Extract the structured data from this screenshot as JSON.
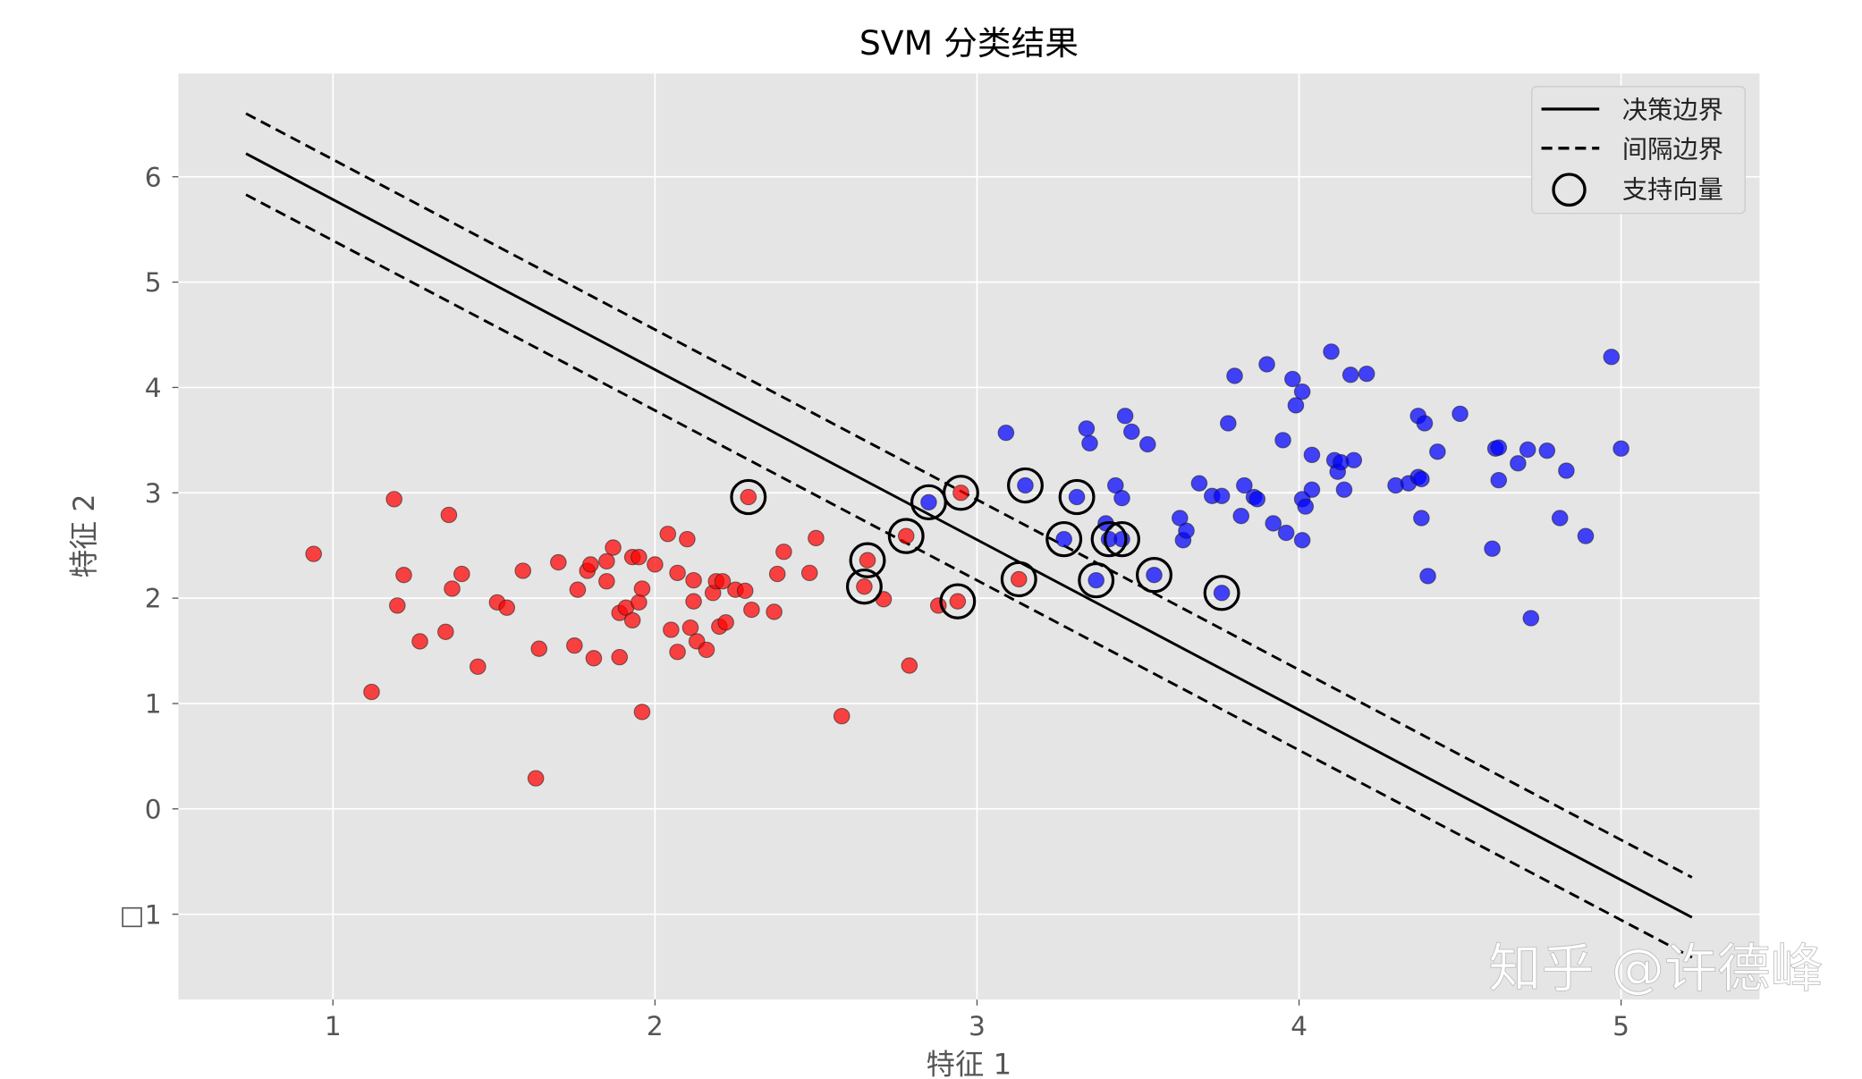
{
  "chart_data": {
    "type": "scatter",
    "title": "SVM 分类结果",
    "xlabel": "特征 1",
    "ylabel": "特征 2",
    "xlim": [
      0.52,
      5.43
    ],
    "ylim": [
      -1.81,
      6.98
    ],
    "grid": true,
    "background": "#e5e5e5",
    "xticks": [
      {
        "v": 1,
        "label": "1"
      },
      {
        "v": 2,
        "label": "2"
      },
      {
        "v": 3,
        "label": "3"
      },
      {
        "v": 4,
        "label": "4"
      },
      {
        "v": 5,
        "label": "5"
      }
    ],
    "yticks": [
      {
        "v": -1,
        "label": "□1"
      },
      {
        "v": 0,
        "label": "0"
      },
      {
        "v": 1,
        "label": "1"
      },
      {
        "v": 2,
        "label": "2"
      },
      {
        "v": 3,
        "label": "3"
      },
      {
        "v": 4,
        "label": "4"
      },
      {
        "v": 5,
        "label": "5"
      },
      {
        "v": 6,
        "label": "6"
      }
    ],
    "legend": {
      "position": "top-right",
      "entries": [
        {
          "label": "决策边界",
          "style": "solid"
        },
        {
          "label": "间隔边界",
          "style": "dashed"
        },
        {
          "label": "支持向量",
          "style": "circle"
        }
      ]
    },
    "lines": [
      {
        "role": "decision",
        "style": "solid",
        "points": [
          [
            0.73,
            6.22
          ],
          [
            5.22,
            -1.03
          ]
        ]
      },
      {
        "role": "margin",
        "style": "dashed",
        "points": [
          [
            0.73,
            6.6
          ],
          [
            5.22,
            -0.65
          ]
        ]
      },
      {
        "role": "margin",
        "style": "dashed",
        "points": [
          [
            0.73,
            5.83
          ],
          [
            5.22,
            -1.41
          ]
        ]
      }
    ],
    "series": [
      {
        "color": "#ff0000",
        "points": [
          [
            0.94,
            2.42
          ],
          [
            1.12,
            1.11
          ],
          [
            1.19,
            2.94
          ],
          [
            1.2,
            1.93
          ],
          [
            1.22,
            2.22
          ],
          [
            1.27,
            1.59
          ],
          [
            1.36,
            2.79
          ],
          [
            1.35,
            1.68
          ],
          [
            1.37,
            2.09
          ],
          [
            1.4,
            2.23
          ],
          [
            1.45,
            1.35
          ],
          [
            1.51,
            1.96
          ],
          [
            1.54,
            1.91
          ],
          [
            1.59,
            2.26
          ],
          [
            1.63,
            0.29
          ],
          [
            1.64,
            1.52
          ],
          [
            1.7,
            2.34
          ],
          [
            1.75,
            1.55
          ],
          [
            1.76,
            2.08
          ],
          [
            1.79,
            2.26
          ],
          [
            1.8,
            2.32
          ],
          [
            1.81,
            1.43
          ],
          [
            1.85,
            2.16
          ],
          [
            1.85,
            2.35
          ],
          [
            1.87,
            2.48
          ],
          [
            1.89,
            1.44
          ],
          [
            1.89,
            1.86
          ],
          [
            1.91,
            1.91
          ],
          [
            1.93,
            2.39
          ],
          [
            1.93,
            1.79
          ],
          [
            1.95,
            2.39
          ],
          [
            1.95,
            1.96
          ],
          [
            1.96,
            0.92
          ],
          [
            1.96,
            2.09
          ],
          [
            2.0,
            2.32
          ],
          [
            2.04,
            2.61
          ],
          [
            2.05,
            1.7
          ],
          [
            2.07,
            1.49
          ],
          [
            2.07,
            2.24
          ],
          [
            2.1,
            2.56
          ],
          [
            2.11,
            1.72
          ],
          [
            2.12,
            2.17
          ],
          [
            2.12,
            1.97
          ],
          [
            2.13,
            1.59
          ],
          [
            2.16,
            1.51
          ],
          [
            2.18,
            2.05
          ],
          [
            2.19,
            2.16
          ],
          [
            2.2,
            1.73
          ],
          [
            2.21,
            2.16
          ],
          [
            2.22,
            1.77
          ],
          [
            2.25,
            2.08
          ],
          [
            2.28,
            2.07
          ],
          [
            2.29,
            2.96
          ],
          [
            2.3,
            1.89
          ],
          [
            2.37,
            1.87
          ],
          [
            2.38,
            2.23
          ],
          [
            2.4,
            2.44
          ],
          [
            2.48,
            2.24
          ],
          [
            2.5,
            2.57
          ],
          [
            2.58,
            0.88
          ],
          [
            2.65,
            2.11
          ],
          [
            2.66,
            2.36
          ],
          [
            2.71,
            1.99
          ],
          [
            2.78,
            2.59
          ],
          [
            2.79,
            1.36
          ],
          [
            2.88,
            1.93
          ],
          [
            2.94,
            1.97
          ],
          [
            2.95,
            3.0
          ],
          [
            3.13,
            2.18
          ]
        ]
      },
      {
        "color": "#0000ff",
        "points": [
          [
            2.85,
            2.91
          ],
          [
            3.09,
            3.57
          ],
          [
            3.15,
            3.07
          ],
          [
            3.27,
            2.56
          ],
          [
            3.31,
            2.96
          ],
          [
            3.34,
            3.61
          ],
          [
            3.35,
            3.47
          ],
          [
            3.37,
            2.17
          ],
          [
            3.4,
            2.71
          ],
          [
            3.41,
            2.56
          ],
          [
            3.43,
            3.07
          ],
          [
            3.45,
            2.56
          ],
          [
            3.45,
            2.95
          ],
          [
            3.46,
            3.73
          ],
          [
            3.48,
            3.58
          ],
          [
            3.53,
            3.46
          ],
          [
            3.55,
            2.22
          ],
          [
            3.63,
            2.76
          ],
          [
            3.64,
            2.55
          ],
          [
            3.65,
            2.64
          ],
          [
            3.69,
            3.09
          ],
          [
            3.73,
            2.97
          ],
          [
            3.76,
            2.05
          ],
          [
            3.76,
            2.97
          ],
          [
            3.78,
            3.66
          ],
          [
            3.8,
            4.11
          ],
          [
            3.82,
            2.78
          ],
          [
            3.83,
            3.07
          ],
          [
            3.86,
            2.96
          ],
          [
            3.87,
            2.94
          ],
          [
            3.9,
            4.22
          ],
          [
            3.92,
            2.71
          ],
          [
            3.95,
            3.5
          ],
          [
            3.96,
            2.62
          ],
          [
            3.98,
            4.08
          ],
          [
            3.99,
            3.83
          ],
          [
            4.01,
            3.96
          ],
          [
            4.01,
            2.94
          ],
          [
            4.01,
            2.55
          ],
          [
            4.02,
            2.87
          ],
          [
            4.04,
            3.03
          ],
          [
            4.04,
            3.36
          ],
          [
            4.1,
            4.34
          ],
          [
            4.11,
            3.31
          ],
          [
            4.12,
            3.2
          ],
          [
            4.13,
            3.29
          ],
          [
            4.14,
            3.03
          ],
          [
            4.16,
            4.12
          ],
          [
            4.17,
            3.31
          ],
          [
            4.21,
            4.13
          ],
          [
            4.3,
            3.07
          ],
          [
            4.34,
            3.09
          ],
          [
            4.37,
            3.73
          ],
          [
            4.37,
            3.15
          ],
          [
            4.38,
            3.13
          ],
          [
            4.38,
            2.76
          ],
          [
            4.39,
            3.66
          ],
          [
            4.4,
            2.21
          ],
          [
            4.43,
            3.39
          ],
          [
            4.5,
            3.75
          ],
          [
            4.6,
            2.47
          ],
          [
            4.61,
            3.42
          ],
          [
            4.62,
            3.12
          ],
          [
            4.62,
            3.43
          ],
          [
            4.68,
            3.28
          ],
          [
            4.71,
            3.41
          ],
          [
            4.72,
            1.81
          ],
          [
            4.77,
            3.4
          ],
          [
            4.81,
            2.76
          ],
          [
            4.83,
            3.21
          ],
          [
            4.89,
            2.59
          ],
          [
            4.97,
            4.29
          ],
          [
            5.0,
            3.42
          ]
        ]
      }
    ],
    "support_vectors": [
      [
        2.29,
        2.96
      ],
      [
        2.65,
        2.11
      ],
      [
        2.66,
        2.36
      ],
      [
        2.78,
        2.59
      ],
      [
        2.94,
        1.97
      ],
      [
        2.95,
        3.0
      ],
      [
        3.13,
        2.18
      ],
      [
        2.85,
        2.91
      ],
      [
        3.15,
        3.07
      ],
      [
        3.27,
        2.56
      ],
      [
        3.31,
        2.96
      ],
      [
        3.37,
        2.17
      ],
      [
        3.41,
        2.56
      ],
      [
        3.45,
        2.56
      ],
      [
        3.55,
        2.22
      ],
      [
        3.76,
        2.05
      ]
    ]
  },
  "watermark": "知乎 @许德峰"
}
